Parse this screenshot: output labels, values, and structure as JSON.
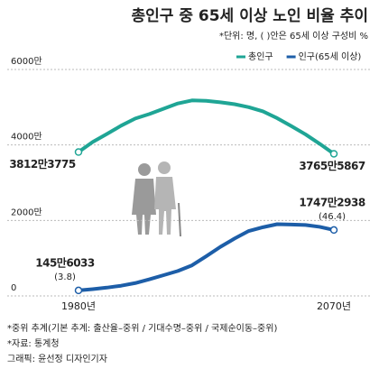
{
  "chart_data": {
    "type": "line",
    "title": "총인구 중 65세 이상 노인 비율 추이",
    "subtitle": "*단위: 명, ( )안은 65세 이상 구성비 %",
    "x": [
      1980,
      1985,
      1990,
      1995,
      2000,
      2005,
      2010,
      2015,
      2020,
      2025,
      2030,
      2035,
      2040,
      2045,
      2050,
      2055,
      2060,
      2065,
      2070
    ],
    "series": [
      {
        "name": "총인구",
        "color": "#1fa595",
        "values": [
          38123775,
          40800000,
          42900000,
          45100000,
          47000000,
          48200000,
          49600000,
          51000000,
          51800000,
          51700000,
          51300000,
          50800000,
          50000000,
          48900000,
          47100000,
          45000000,
          42800000,
          40300000,
          37655867
        ],
        "value_labels": [
          "3812만3775",
          null,
          null,
          null,
          null,
          null,
          null,
          null,
          null,
          null,
          null,
          null,
          null,
          null,
          null,
          null,
          null,
          null,
          "3765만5867"
        ]
      },
      {
        "name": "인구(65세 이상)",
        "color": "#1d5ea8",
        "values": [
          1456033,
          1800000,
          2200000,
          2700000,
          3400000,
          4400000,
          5500000,
          6600000,
          8100000,
          10500000,
          13000000,
          15200000,
          17200000,
          18200000,
          19000000,
          18900000,
          18800000,
          18300000,
          17472938
        ],
        "value_labels": [
          "145만6033",
          null,
          null,
          null,
          null,
          null,
          null,
          null,
          null,
          null,
          null,
          null,
          null,
          null,
          null,
          null,
          null,
          null,
          "1747만2938"
        ]
      }
    ],
    "annotations": [
      "(3.8)",
      "(46.4)"
    ],
    "xlim": [
      1980,
      2070
    ],
    "xticks": [
      {
        "value": 1980,
        "label": "1980년"
      },
      {
        "value": 2070,
        "label": "2070년"
      }
    ],
    "ylim": [
      0,
      60000000
    ],
    "yticks": [
      0,
      {
        "value": 20000000,
        "label": "2000만"
      },
      {
        "value": 40000000,
        "label": "4000만"
      },
      {
        "value": 60000000,
        "label": "6000만"
      }
    ],
    "grid": true,
    "legend": "top-right",
    "notes": [
      "*중위 추계(기본 추계: 출산율–중위 / 기대수명–중위 / 국제순이동–중위)",
      "*자료: 통계청",
      "그래픽: 윤선정 디자인기자"
    ]
  }
}
